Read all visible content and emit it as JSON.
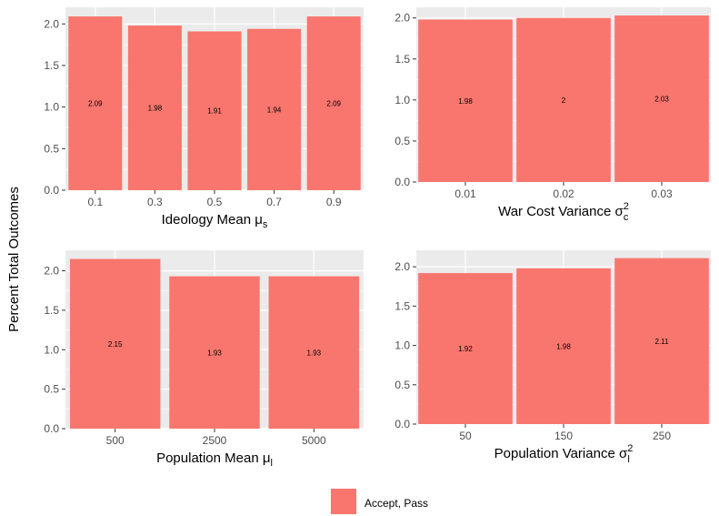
{
  "figure": {
    "ylabel": "Percent Total Outcomes",
    "bar_color": "#F8766D",
    "panel_bg": "#EBEBEB",
    "grid_color": "#FFFFFF"
  },
  "legend": {
    "label": "Accept, Pass",
    "color": "#F8766D"
  },
  "chart_data": [
    {
      "type": "bar",
      "categories": [
        "0.1",
        "0.3",
        "0.5",
        "0.7",
        "0.9"
      ],
      "values": [
        2.09,
        1.98,
        1.91,
        1.94,
        2.09
      ],
      "value_labels": [
        "2.09",
        "1.98",
        "1.91",
        "1.94",
        "2.09"
      ],
      "xlabel_main": "Ideology Mean μ",
      "xlabel_sub": "s",
      "xlabel_sup": "",
      "yticks": [
        "0.0",
        "0.5",
        "1.0",
        "1.5",
        "2.0"
      ],
      "ylim": [
        0,
        2.2
      ],
      "grid": true
    },
    {
      "type": "bar",
      "categories": [
        "0.01",
        "0.02",
        "0.03"
      ],
      "values": [
        1.98,
        2.0,
        2.03
      ],
      "value_labels": [
        "1.98",
        "2",
        "2.03"
      ],
      "xlabel_main": "War Cost Variance σ",
      "xlabel_sub": "c",
      "xlabel_sup": "2",
      "yticks": [
        "0.0",
        "0.5",
        "1.0",
        "1.5",
        "2.0"
      ],
      "ylim": [
        0,
        2.13
      ],
      "grid": true
    },
    {
      "type": "bar",
      "categories": [
        "500",
        "2500",
        "5000"
      ],
      "values": [
        2.15,
        1.93,
        1.93
      ],
      "value_labels": [
        "2.15",
        "1.93",
        "1.93"
      ],
      "xlabel_main": "Population Mean μ",
      "xlabel_sub": "l",
      "xlabel_sup": "",
      "yticks": [
        "0.0",
        "0.5",
        "1.0",
        "1.5",
        "2.0"
      ],
      "ylim": [
        0,
        2.26
      ],
      "grid": true
    },
    {
      "type": "bar",
      "categories": [
        "50",
        "150",
        "250"
      ],
      "values": [
        1.92,
        1.98,
        2.11
      ],
      "value_labels": [
        "1.92",
        "1.98",
        "2.11"
      ],
      "xlabel_main": "Population Variance σ",
      "xlabel_sub": "l",
      "xlabel_sup": "2",
      "yticks": [
        "0.0",
        "0.5",
        "1.0",
        "1.5",
        "2.0"
      ],
      "ylim": [
        0,
        2.21
      ],
      "grid": true
    }
  ]
}
